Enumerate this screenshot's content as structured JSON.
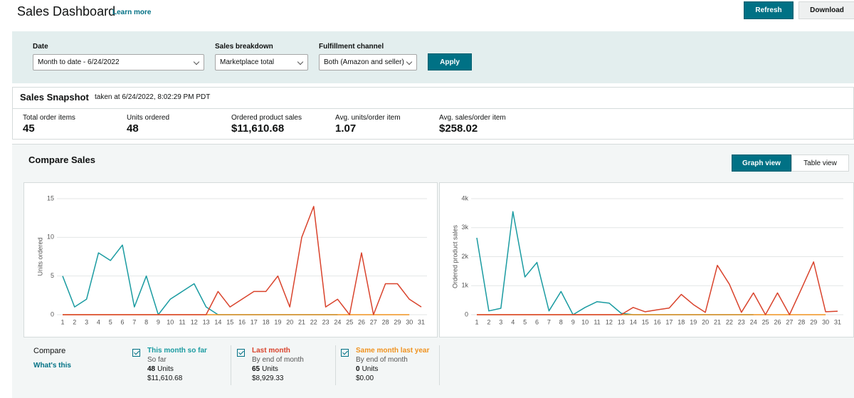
{
  "header": {
    "title": "Sales Dashboard",
    "link": "Learn more",
    "buttons": [
      "Refresh",
      "Download"
    ]
  },
  "filters": {
    "fields": [
      {
        "label": "Date",
        "value": "Month to date - 6/24/2022"
      },
      {
        "label": "Sales breakdown",
        "value": "Marketplace total"
      },
      {
        "label": "Fulfillment channel",
        "value": "Both (Amazon and seller)"
      }
    ],
    "apply": "Apply"
  },
  "snapshot": {
    "title": "Sales Snapshot",
    "taken": "taken at 6/24/2022, 8:02:29 PM PDT",
    "metrics": [
      {
        "label": "Total order items",
        "value": 45
      },
      {
        "label": "Units ordered",
        "value": 48
      },
      {
        "label": "Ordered product sales",
        "value": "$11,610.68"
      },
      {
        "label": "Avg. units/order item",
        "value": 1.07
      },
      {
        "label": "Avg. sales/order item",
        "value": "$258.02"
      }
    ]
  },
  "compare_sales": {
    "title": "Compare Sales",
    "views": [
      "Graph view",
      "Table view"
    ]
  },
  "chart_data": [
    {
      "type": "line",
      "y_label": "Units ordered",
      "categories": [
        "1",
        "2",
        "3",
        "4",
        "5",
        "6",
        "7",
        "8",
        "9",
        "10",
        "11",
        "12",
        "13",
        "14",
        "15",
        "16",
        "17",
        "18",
        "19",
        "20",
        "21",
        "22",
        "23",
        "24",
        "25",
        "26",
        "27",
        "28",
        "29",
        "30",
        "31"
      ],
      "ylim": [
        0,
        15
      ],
      "yticks": [
        0,
        5,
        10,
        15
      ],
      "grid": true,
      "series": [
        {
          "color": "#1a9ba1",
          "values": [
            5,
            1,
            2,
            8,
            7,
            9,
            1,
            5,
            0,
            2,
            3,
            4,
            1,
            0,
            0,
            0,
            0,
            0,
            0,
            0,
            0,
            0,
            0,
            0,
            null,
            null,
            null,
            null,
            null,
            null,
            null
          ]
        },
        {
          "color": "#f0921e",
          "values": [
            0,
            0,
            0,
            0,
            0,
            0,
            0,
            0,
            0,
            0,
            0,
            0,
            0,
            0,
            0,
            0,
            0,
            0,
            0,
            0,
            0,
            0,
            0,
            0,
            0,
            0,
            0,
            0,
            0,
            0,
            null
          ]
        },
        {
          "color": "#d9432c",
          "values": [
            0,
            0,
            0,
            0,
            0,
            0,
            0,
            0,
            0,
            0,
            0,
            0,
            0,
            3,
            1,
            2,
            3,
            3,
            5,
            1,
            10,
            14,
            1,
            2,
            0,
            8,
            0,
            4,
            4,
            2,
            1
          ]
        }
      ]
    },
    {
      "type": "line",
      "y_label": "Ordered product sales",
      "categories": [
        "1",
        "2",
        "3",
        "4",
        "5",
        "6",
        "7",
        "8",
        "9",
        "10",
        "11",
        "12",
        "13",
        "14",
        "15",
        "16",
        "17",
        "18",
        "19",
        "20",
        "21",
        "22",
        "23",
        "24",
        "25",
        "26",
        "27",
        "28",
        "29",
        "30",
        "31"
      ],
      "ylim": [
        0,
        4000
      ],
      "yticks": [
        0,
        {
          "value": 1000,
          "label": "1k"
        },
        {
          "value": 2000,
          "label": "2k"
        },
        {
          "value": 3000,
          "label": "3k"
        },
        {
          "value": 4000,
          "label": "4k"
        }
      ],
      "grid": true,
      "series": [
        {
          "color": "#1a9ba1",
          "values": [
            2650,
            130,
            220,
            3550,
            1300,
            1800,
            130,
            800,
            0,
            250,
            450,
            400,
            50,
            0,
            0,
            0,
            0,
            0,
            0,
            0,
            0,
            0,
            0,
            0,
            null,
            null,
            null,
            null,
            null,
            null,
            null
          ]
        },
        {
          "color": "#f0921e",
          "values": [
            0,
            0,
            0,
            0,
            0,
            0,
            0,
            0,
            0,
            0,
            0,
            0,
            0,
            0,
            0,
            0,
            0,
            0,
            0,
            0,
            0,
            0,
            0,
            0,
            0,
            0,
            0,
            0,
            0,
            0,
            null
          ]
        },
        {
          "color": "#d9432c",
          "values": [
            0,
            0,
            0,
            0,
            0,
            0,
            0,
            0,
            0,
            0,
            0,
            0,
            0,
            250,
            100,
            170,
            230,
            700,
            350,
            80,
            1700,
            1050,
            80,
            750,
            0,
            750,
            0,
            900,
            1820,
            100,
            120
          ]
        }
      ]
    }
  ],
  "compare": {
    "title": "Compare",
    "link": "What's this",
    "items": [
      {
        "name": "This month so far",
        "period": "So far",
        "units": 48,
        "units_label": "Units",
        "sales": "$11,610.68"
      },
      {
        "name": "Last month",
        "period": "By end of month",
        "units": 65,
        "units_label": "Units",
        "sales": "$8,929.33"
      },
      {
        "name": "Same month last year",
        "period": "By end of month",
        "units": 0,
        "units_label": "Units",
        "sales": "$0.00"
      }
    ]
  }
}
